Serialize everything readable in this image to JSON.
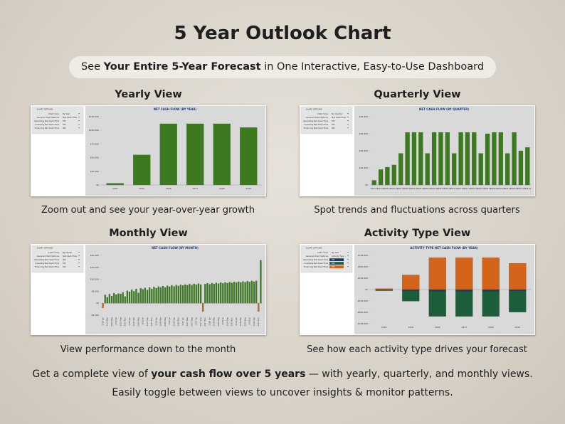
{
  "title": "5 Year Outlook Chart",
  "subtitle": {
    "before": "See ",
    "bold": "Your Entire 5-Year Forecast",
    "after": " in One Interactive, Easy-to-Use Dashboard"
  },
  "panels": [
    {
      "heading": "Yearly View",
      "caption": "Zoom out and see your year-over-year growth",
      "options": {
        "title": "CHART OPTIONS",
        "rows": [
          {
            "label": "Chart View",
            "value": "By Year"
          },
          {
            "label": "General Chart Options",
            "value": "Net Cash Flow"
          },
          {
            "label": "Operating Net Cash Flow",
            "value": "ON"
          },
          {
            "label": "Investing Net Cash Flow",
            "value": "ON"
          },
          {
            "label": "Financing Net Cash Flow",
            "value": "ON"
          }
        ]
      },
      "chart": {
        "type": "bar",
        "title": "NET CASH FLOW (BY YEAR)",
        "color": "#3b7a1f",
        "categories": [
          "2024",
          "2025",
          "2026",
          "2027",
          "2028",
          "2029"
        ],
        "values": [
          3000,
          55000,
          112000,
          112000,
          112000,
          105000
        ],
        "ylim": [
          0,
          125000
        ],
        "yticks": [
          {
            "value": 0,
            "label": "$0"
          },
          {
            "value": 25000,
            "label": "$25,000"
          },
          {
            "value": 50000,
            "label": "$50,000"
          },
          {
            "value": 75000,
            "label": "$75,000"
          },
          {
            "value": 100000,
            "label": "$100,000"
          },
          {
            "value": 125000,
            "label": "$125,000"
          }
        ]
      }
    },
    {
      "heading": "Quarterly View",
      "caption": "Spot trends and fluctuations across quarters",
      "options": {
        "title": "CHART OPTIONS",
        "rows": [
          {
            "label": "Chart View",
            "value": "By Quarter"
          },
          {
            "label": "General Chart Options",
            "value": "Net Cash Flow"
          },
          {
            "label": "Operating Net Cash Flow",
            "value": "ON"
          },
          {
            "label": "Investing Net Cash Flow",
            "value": "ON"
          },
          {
            "label": "Financing Net Cash Flow",
            "value": "ON"
          }
        ]
      },
      "chart": {
        "type": "bar",
        "title": "NET CASH FLOW (BY QUARTER)",
        "color": "#3b7a1f",
        "categories": [
          "2024 Q1",
          "2024 Q2",
          "2024 Q3",
          "2024 Q4",
          "2025 Q1",
          "2025 Q2",
          "2025 Q3",
          "2025 Q4",
          "2026 Q1",
          "2026 Q2",
          "2026 Q3",
          "2026 Q4",
          "2027 Q1",
          "2027 Q2",
          "2027 Q3",
          "2027 Q4",
          "2028 Q1",
          "2028 Q2",
          "2028 Q3",
          "2028 Q4",
          "2029 Q1",
          "2029 Q2",
          "2029 Q3",
          "2029 Q4"
        ],
        "values": [
          2700,
          9000,
          10400,
          11700,
          18500,
          30800,
          30800,
          30800,
          18500,
          30800,
          30800,
          30800,
          18500,
          30800,
          30800,
          30800,
          18500,
          30000,
          30800,
          30800,
          18500,
          30800,
          20000,
          22000
        ],
        "ylim": [
          0,
          40000
        ],
        "yticks": [
          {
            "value": 0,
            "label": "$0"
          },
          {
            "value": 10000,
            "label": "$10,000"
          },
          {
            "value": 20000,
            "label": "$20,000"
          },
          {
            "value": 30000,
            "label": "$30,000"
          },
          {
            "value": 40000,
            "label": "$40,000"
          }
        ]
      }
    },
    {
      "heading": "Monthly View",
      "caption": "View performance down to the month",
      "options": {
        "title": "CHART OPTIONS",
        "rows": [
          {
            "label": "Chart View",
            "value": "By Month"
          },
          {
            "label": "General Chart Options",
            "value": "Net Cash Flow"
          },
          {
            "label": "Operating Net Cash Flow",
            "value": "ON"
          },
          {
            "label": "Investing Net Cash Flow",
            "value": "ON"
          },
          {
            "label": "Financing Net Cash Flow",
            "value": "ON"
          }
        ]
      },
      "chart": {
        "type": "bar",
        "title": "NET CASH FLOW (BY MONTH)",
        "color": "#3b7a1f",
        "negative_color": "#d4641a",
        "categories": [
          "2024 Jan",
          null,
          "2024 Mar",
          null,
          "2024 May",
          null,
          "2024 Jul",
          null,
          "2024 Sep",
          null,
          "2024 Nov",
          null,
          "2025 Jan",
          null,
          "2025 Mar",
          null,
          "2025 May",
          null,
          "2025 Jul",
          null,
          "2025 Sep",
          null,
          "2025 Nov",
          null,
          "2026 Jan",
          null,
          "2026 Mar",
          null,
          "2026 May",
          null,
          "2026 Jul",
          null,
          "2026 Sep",
          null,
          "2026 Nov",
          null,
          "2027 Jan",
          null,
          "2027 Mar",
          null,
          "2027 May",
          null,
          "2027 Jul",
          null,
          "2027 Sep",
          null,
          "2027 Nov",
          null,
          "2028 Jan",
          null,
          "2028 Mar",
          null,
          "2028 May",
          null,
          "2028 Jul",
          null,
          "2028 Sep",
          null,
          "2028 Nov",
          null,
          "2029 Jan",
          null,
          "2029 Mar",
          null,
          "2029 May",
          null,
          "2029 Jul",
          null,
          "2029 Sep",
          null,
          "2029 Nov",
          null
        ],
        "values": [
          -2000,
          3500,
          2500,
          3800,
          3000,
          4200,
          3600,
          4000,
          3900,
          4500,
          2800,
          5200,
          4800,
          5600,
          5000,
          6000,
          4300,
          6200,
          5800,
          6400,
          5500,
          6600,
          6000,
          6800,
          6300,
          7000,
          6500,
          7200,
          6600,
          7300,
          6900,
          7500,
          7000,
          7600,
          7200,
          7700,
          7400,
          7800,
          7500,
          8000,
          7600,
          8100,
          7700,
          8200,
          7800,
          -3500,
          8000,
          8300,
          7900,
          8400,
          8100,
          8500,
          8200,
          8600,
          8300,
          8700,
          8400,
          8800,
          8500,
          8900,
          8600,
          9000,
          8700,
          9100,
          8800,
          9200,
          8900,
          9300,
          9000,
          9400,
          -3500,
          18000
        ],
        "ylim": [
          -5000,
          20000
        ],
        "yticks": [
          {
            "value": -5000,
            "label": "-$5,000"
          },
          {
            "value": 0,
            "label": "$0"
          },
          {
            "value": 5000,
            "label": "$5,000"
          },
          {
            "value": 10000,
            "label": "$10,000"
          },
          {
            "value": 15000,
            "label": "$15,000"
          },
          {
            "value": 20000,
            "label": "$20,000"
          }
        ]
      }
    },
    {
      "heading": "Activity Type View",
      "caption": "See how each activity type drives your forecast",
      "options": {
        "title": "CHART OPTIONS",
        "rows": [
          {
            "label": "Chart View",
            "value": "By Year"
          },
          {
            "label": "General Chart Options",
            "value": "Activity Type"
          },
          {
            "label": "Operating Net Cash Flow",
            "value": "ON",
            "color": "#1f3864"
          },
          {
            "label": "Investing Net Cash Flow",
            "value": "ON",
            "color": "#1d5e3a"
          },
          {
            "label": "Financing Net Cash Flow",
            "value": "ON",
            "color": "#d4641a"
          }
        ]
      },
      "chart": {
        "type": "stacked_bar",
        "title": "ACTIVITY TYPE NET CASH FLOW (BY YEAR)",
        "categories": [
          "2024",
          "2025",
          "2026",
          "2027",
          "2028",
          "2029"
        ],
        "series": [
          {
            "color": "#1f3864",
            "values": [
              -10000,
              -30000,
              -40000,
              -40000,
              -40000,
              -35000
            ]
          },
          {
            "color": "#1d5e3a",
            "values": [
              -15000,
              -225000,
              -550000,
              -550000,
              -550000,
              -460000
            ]
          },
          {
            "color": "#d4641a",
            "values": [
              20000,
              320000,
              700000,
              700000,
              700000,
              575000
            ]
          }
        ],
        "ylim": [
          -750000,
          750000
        ],
        "yticks": [
          {
            "value": -750000,
            "label": "-$750,000"
          },
          {
            "value": -500000,
            "label": "-$500,000"
          },
          {
            "value": -250000,
            "label": "-$250,000"
          },
          {
            "value": 0,
            "label": "$0"
          },
          {
            "value": 250000,
            "label": "$250,000"
          },
          {
            "value": 500000,
            "label": "$500,000"
          },
          {
            "value": 750000,
            "label": "$750,000"
          }
        ]
      }
    }
  ],
  "footer": {
    "line1": {
      "before": "Get a complete view of ",
      "bold": "your cash flow over 5 years",
      "after": " — with yearly, quarterly, and monthly views."
    },
    "line2": "Easily toggle between views to uncover insights & monitor patterns."
  }
}
